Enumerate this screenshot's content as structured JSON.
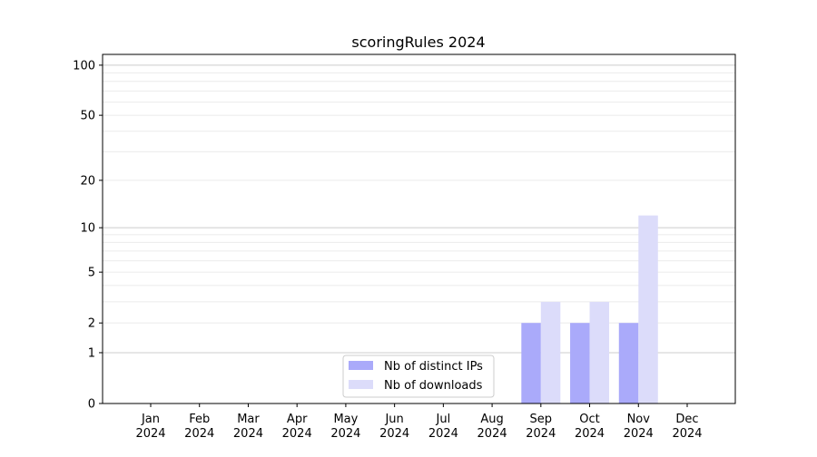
{
  "chart_data": {
    "type": "bar",
    "title": "scoringRules 2024",
    "xlabel": "",
    "ylabel": "",
    "y_scale": "log(1+y)",
    "ylim": [
      0,
      116
    ],
    "yticks": [
      0,
      1,
      2,
      5,
      10,
      20,
      50,
      100
    ],
    "grid": true,
    "legend_position": "bottom-center",
    "categories": [
      "Jan\n2024",
      "Feb\n2024",
      "Mar\n2024",
      "Apr\n2024",
      "May\n2024",
      "Jun\n2024",
      "Jul\n2024",
      "Aug\n2024",
      "Sep\n2024",
      "Oct\n2024",
      "Nov\n2024",
      "Dec\n2024"
    ],
    "series": [
      {
        "name": "Nb of distinct IPs",
        "color": "#aaaafa",
        "values": [
          0,
          0,
          0,
          0,
          0,
          0,
          0,
          0,
          2,
          2,
          2,
          0
        ]
      },
      {
        "name": "Nb of downloads",
        "color": "#dcdcfa",
        "values": [
          0,
          0,
          0,
          0,
          0,
          0,
          0,
          0,
          3,
          3,
          12,
          0
        ]
      }
    ]
  }
}
